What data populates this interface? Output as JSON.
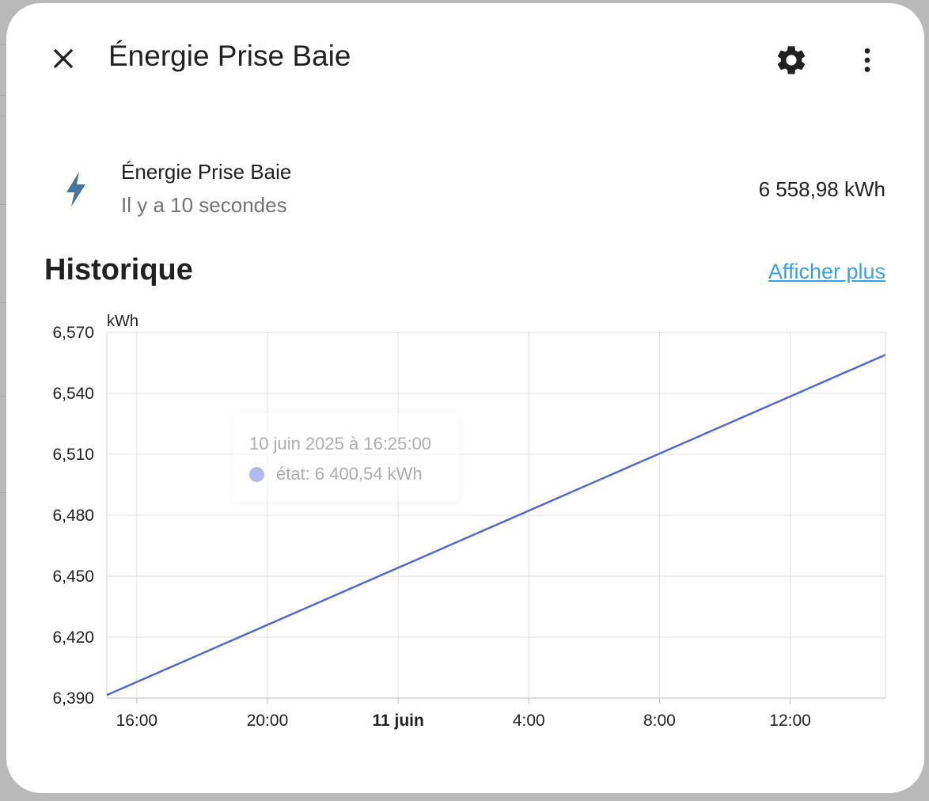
{
  "dialog": {
    "title": "Énergie Prise Baie",
    "icons": {
      "close": "close-icon",
      "settings": "gear-icon",
      "more": "more-vertical-icon"
    }
  },
  "entity": {
    "icon": "lightning-bolt-icon",
    "name": "Énergie Prise Baie",
    "last_changed": "Il y a 10 secondes",
    "state": "6 558,98 kWh"
  },
  "history": {
    "title": "Historique",
    "show_more": "Afficher plus"
  },
  "chart_data": {
    "type": "line",
    "ylabel": "kWh",
    "ylim": [
      6390,
      6570
    ],
    "y_ticks": [
      6390,
      6420,
      6450,
      6480,
      6510,
      6540,
      6570
    ],
    "y_tick_labels": [
      "6,390",
      "6,420",
      "6,450",
      "6,480",
      "6,510",
      "6,540",
      "6,570"
    ],
    "x_range": [
      "2025-06-10 15:05",
      "2025-06-11 14:55"
    ],
    "x_ticks": [
      {
        "time": "2025-06-10 16:00",
        "label": "16:00",
        "bold": false
      },
      {
        "time": "2025-06-10 20:00",
        "label": "20:00",
        "bold": false
      },
      {
        "time": "2025-06-11 00:00",
        "label": "11 juin",
        "bold": true
      },
      {
        "time": "2025-06-11 04:00",
        "label": "4:00",
        "bold": false
      },
      {
        "time": "2025-06-11 08:00",
        "label": "8:00",
        "bold": false
      },
      {
        "time": "2025-06-11 12:00",
        "label": "12:00",
        "bold": false
      }
    ],
    "grid": true,
    "series": [
      {
        "color": "#5468cf",
        "points": [
          {
            "x": "2025-06-10 15:05",
            "y": 6391.5
          },
          {
            "x": "2025-06-11 14:55",
            "y": 6558.98
          }
        ]
      }
    ],
    "tooltip": {
      "time": "10 juin 2025 à 16:25:00",
      "value": "état: 6 400,54 kWh",
      "color": "#6f82dd"
    }
  }
}
